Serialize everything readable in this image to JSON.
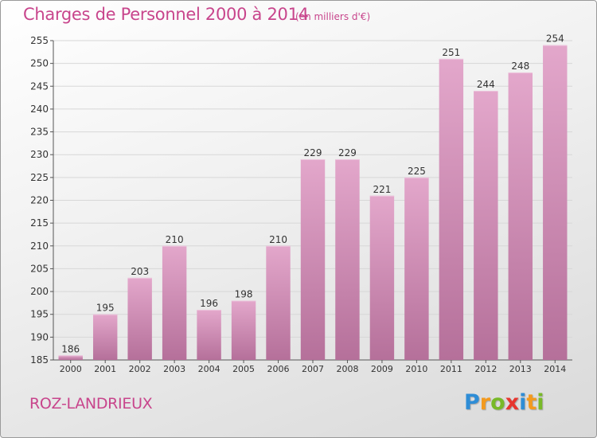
{
  "colors": {
    "title": "#c8458c",
    "bar_top": "#e3a7cb",
    "bar_bottom": "#b5709a",
    "grid": "#d7d7d7"
  },
  "logo": {
    "letters": [
      "P",
      "r",
      "o",
      "x",
      "i",
      "t",
      "i"
    ],
    "colors": [
      "#2e8dd6",
      "#f39a1e",
      "#78b928",
      "#e7362f",
      "#2e8dd6",
      "#f39a1e",
      "#78b928"
    ]
  },
  "place_name": "ROZ-LANDRIEUX",
  "chart_data": {
    "type": "bar",
    "title": "Charges de Personnel 2000 à 2014",
    "subtitle": "(en milliers d'€)",
    "xlabel": "",
    "ylabel": "",
    "categories": [
      "2000",
      "2001",
      "2002",
      "2003",
      "2004",
      "2005",
      "2006",
      "2007",
      "2008",
      "2009",
      "2010",
      "2011",
      "2012",
      "2013",
      "2014"
    ],
    "values": [
      186,
      195,
      203,
      210,
      196,
      198,
      210,
      229,
      229,
      221,
      225,
      251,
      244,
      248,
      254
    ],
    "ylim": [
      185,
      255
    ],
    "yticks": [
      185,
      190,
      195,
      200,
      205,
      210,
      215,
      220,
      225,
      230,
      235,
      240,
      245,
      250,
      255
    ],
    "grid": true,
    "legend": "none"
  }
}
